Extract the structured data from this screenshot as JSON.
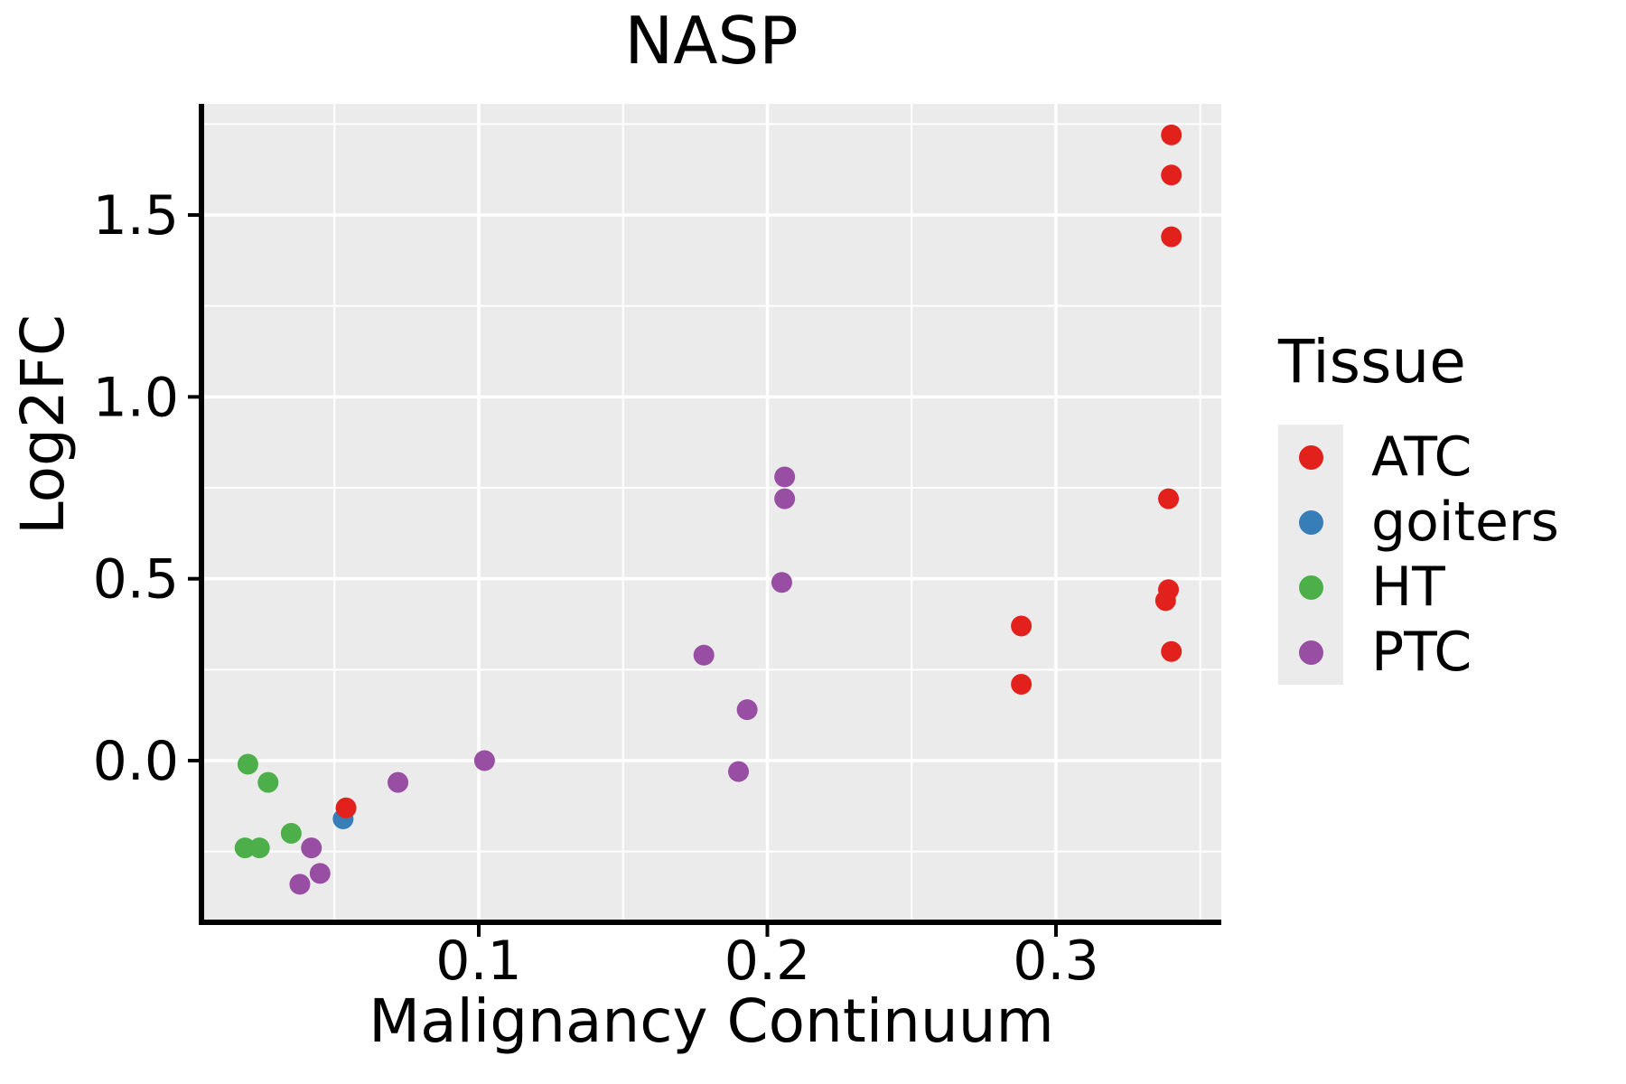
{
  "title": "NASP",
  "axes": {
    "x_title": "Malignancy Continuum",
    "y_title": "Log2FC"
  },
  "legend": {
    "title": "Tissue",
    "items": [
      {
        "label": "ATC",
        "color": "#E3211C"
      },
      {
        "label": "goiters",
        "color": "#377EB8"
      },
      {
        "label": "HT",
        "color": "#4DAF4A"
      },
      {
        "label": "PTC",
        "color": "#984EA3"
      }
    ]
  },
  "colors": {
    "panel_background": "#EBEBEB",
    "gridline": "#FFFFFF",
    "axis_line": "#000000",
    "text": "#000000",
    "legend_key": "#EBEBEB"
  },
  "chart_data": {
    "type": "scatter",
    "title": "NASP",
    "xlabel": "Malignancy Continuum",
    "ylabel": "Log2FC",
    "xlim": [
      0.0039,
      0.3573
    ],
    "ylim": [
      -0.442,
      1.8055
    ],
    "x_ticks": [
      {
        "value": 0.1,
        "label": "0.1"
      },
      {
        "value": 0.2,
        "label": "0.2"
      },
      {
        "value": 0.3,
        "label": "0.3"
      }
    ],
    "y_ticks": [
      {
        "value": 0.0,
        "label": "0.0"
      },
      {
        "value": 0.5,
        "label": "0.5"
      },
      {
        "value": 1.0,
        "label": "1.0"
      },
      {
        "value": 1.5,
        "label": "1.5"
      }
    ],
    "x_minor_ticks": [
      0.05,
      0.15,
      0.25,
      0.35
    ],
    "y_minor_ticks": [
      -0.25,
      0.25,
      0.75,
      1.25,
      1.75
    ],
    "grid": "white major and minor gridlines on gray panel",
    "legend_position": "right",
    "point_radius_px": 11.5,
    "series": [
      {
        "name": "HT",
        "color": "#4DAF4A",
        "points": [
          [
            0.02,
            -0.01
          ],
          [
            0.027,
            -0.06
          ],
          [
            0.035,
            -0.2
          ],
          [
            0.019,
            -0.24
          ],
          [
            0.024,
            -0.24
          ]
        ]
      },
      {
        "name": "PTC",
        "color": "#984EA3",
        "points": [
          [
            0.042,
            -0.24
          ],
          [
            0.045,
            -0.31
          ],
          [
            0.038,
            -0.34
          ],
          [
            0.072,
            -0.06
          ],
          [
            0.102,
            0.0
          ],
          [
            0.178,
            0.29
          ],
          [
            0.193,
            0.14
          ],
          [
            0.19,
            -0.03
          ],
          [
            0.206,
            0.78
          ],
          [
            0.206,
            0.72
          ],
          [
            0.205,
            0.49
          ]
        ]
      },
      {
        "name": "goiters",
        "color": "#377EB8",
        "points": [
          [
            0.053,
            -0.16
          ]
        ]
      },
      {
        "name": "ATC",
        "color": "#E3211C",
        "points": [
          [
            0.34,
            1.72
          ],
          [
            0.34,
            1.61
          ],
          [
            0.34,
            1.44
          ],
          [
            0.339,
            0.72
          ],
          [
            0.339,
            0.47
          ],
          [
            0.338,
            0.44
          ],
          [
            0.34,
            0.3
          ],
          [
            0.288,
            0.37
          ],
          [
            0.288,
            0.21
          ],
          [
            0.054,
            -0.13
          ]
        ]
      }
    ]
  }
}
